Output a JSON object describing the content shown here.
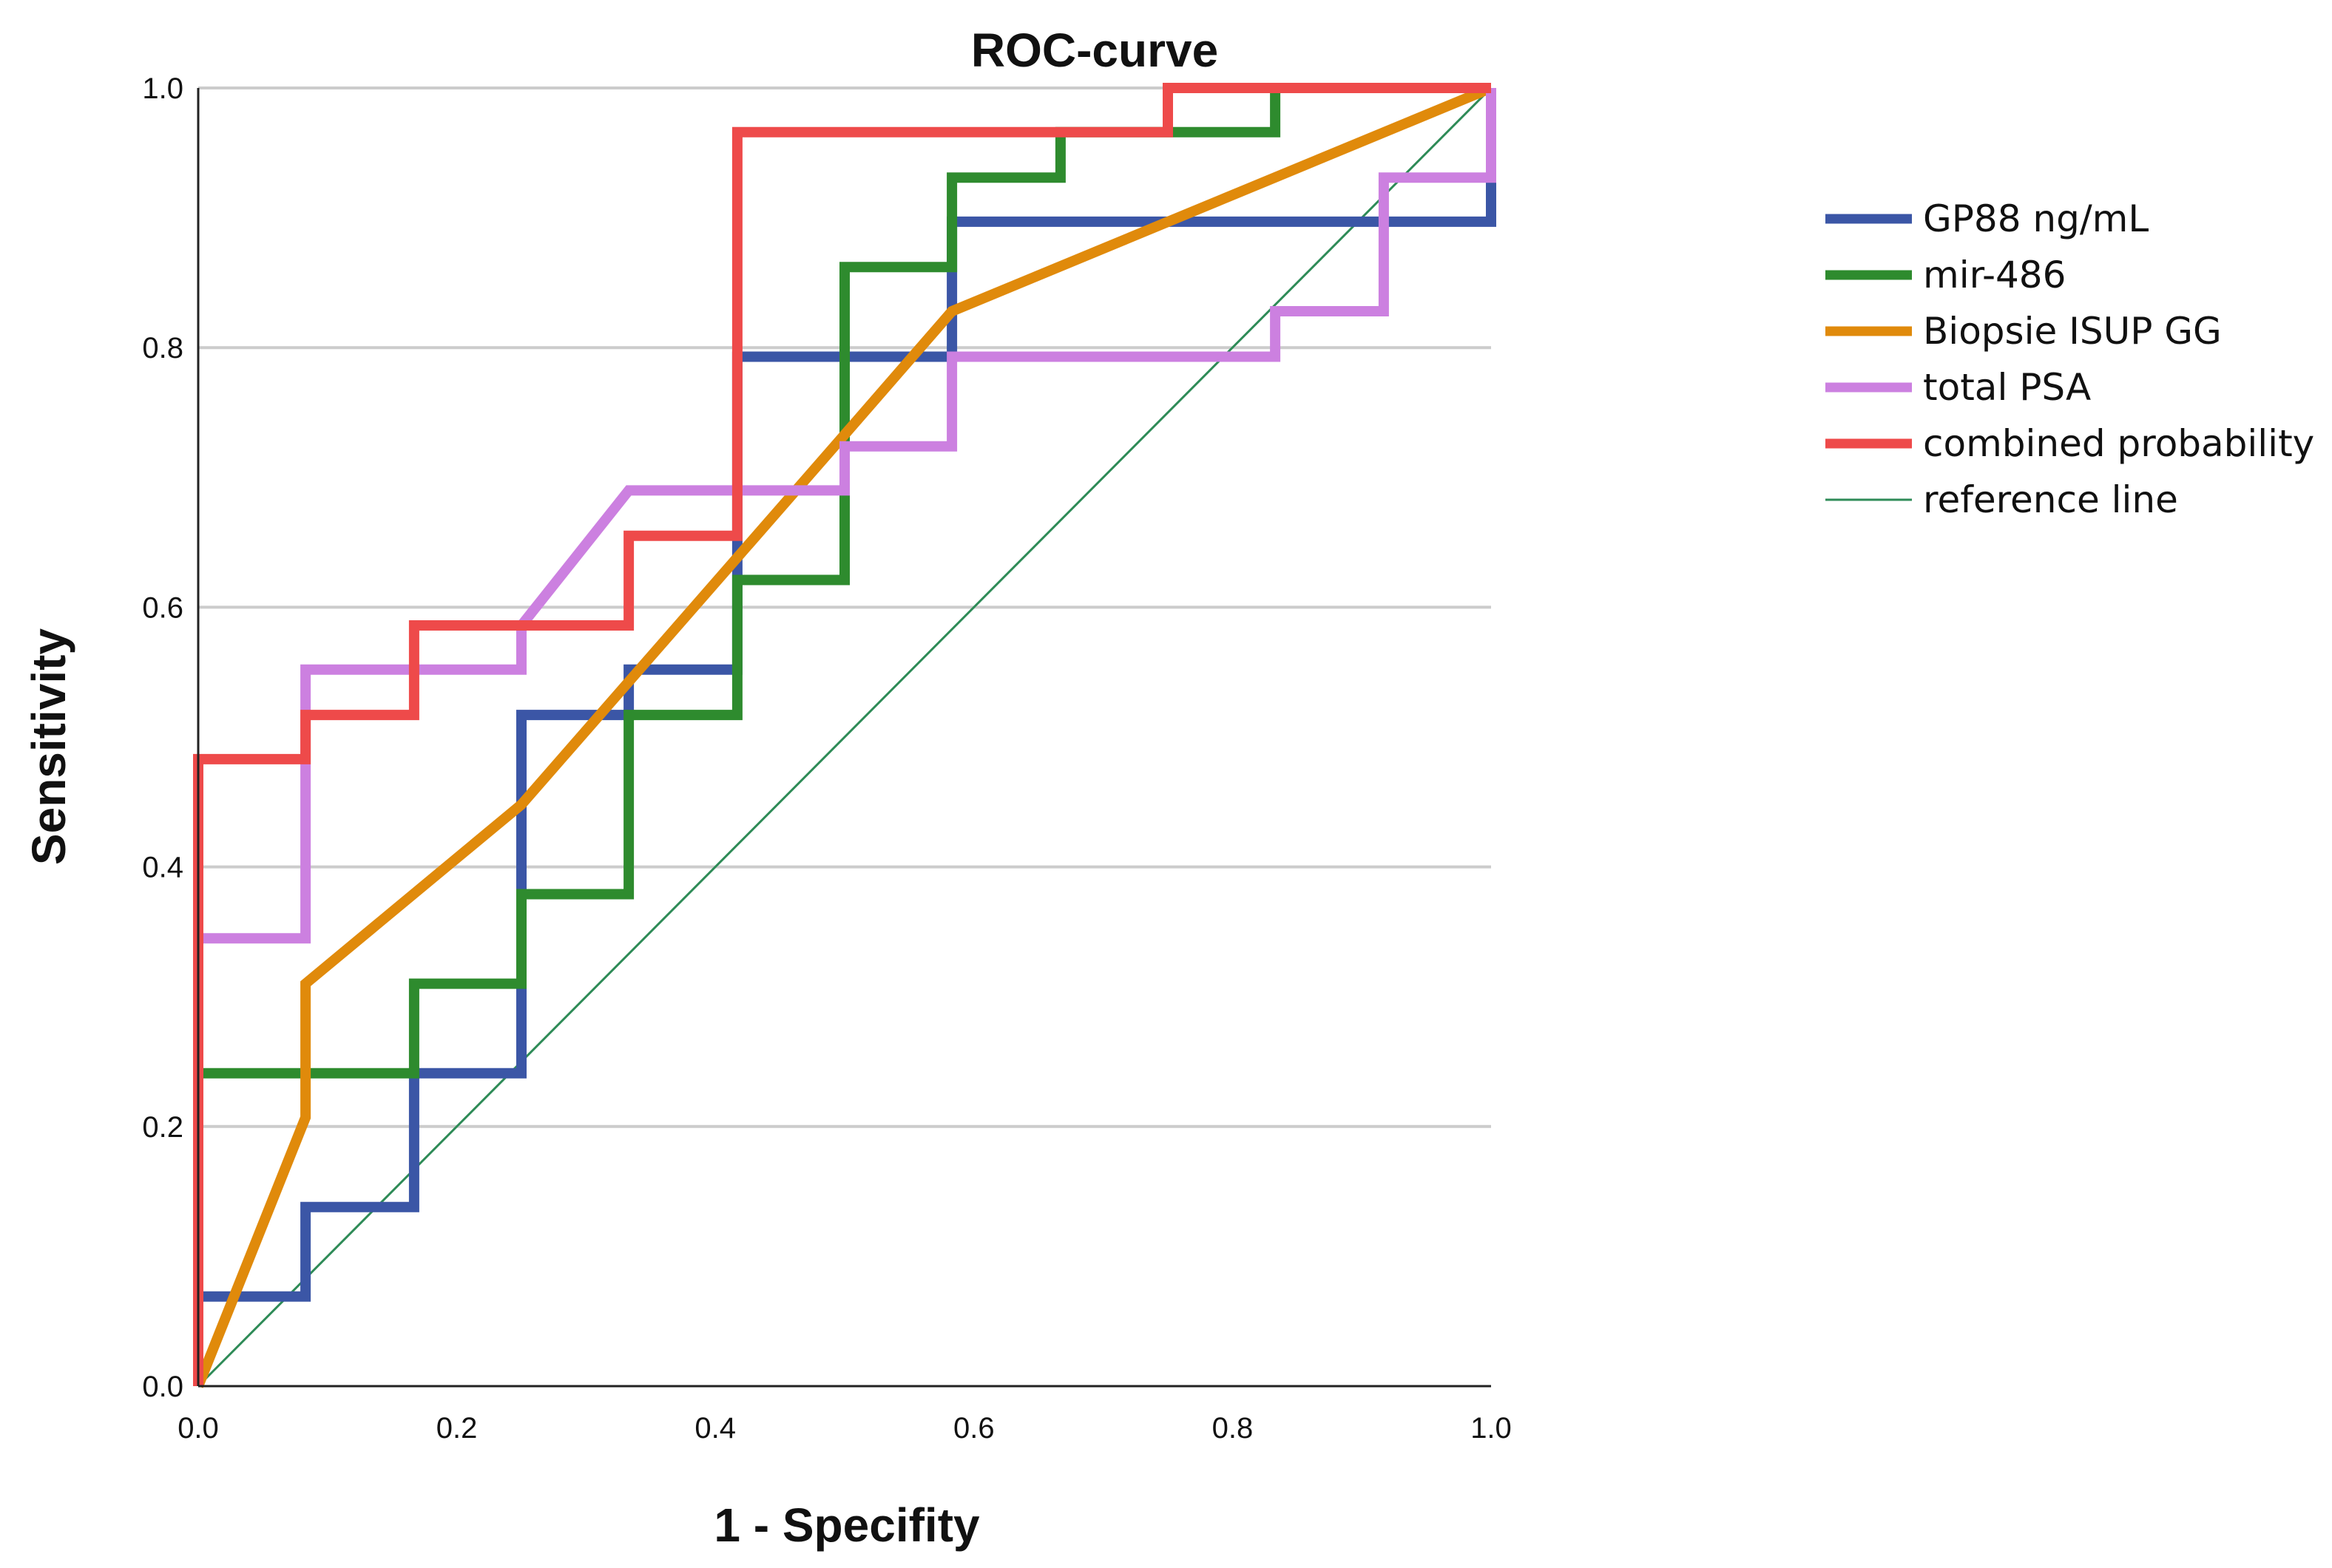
{
  "chart_data": {
    "type": "line",
    "title": "ROC-curve",
    "xlabel": "1 - Specifity",
    "ylabel": "Sensitivity",
    "xlim": [
      0,
      1
    ],
    "ylim": [
      0,
      1
    ],
    "xticks": [
      "0.0",
      "0.2",
      "0.4",
      "0.6",
      "0.8",
      "1.0"
    ],
    "yticks": [
      "0.0",
      "0.2",
      "0.4",
      "0.6",
      "0.8",
      "1.0"
    ],
    "grid": "horizontal",
    "legend_position": "right",
    "series": [
      {
        "name": "GP88 ng/mL",
        "color": "#3b56a6",
        "style": "step",
        "points": [
          [
            0,
            0
          ],
          [
            0,
            0.069
          ],
          [
            0.083,
            0.069
          ],
          [
            0.083,
            0.138
          ],
          [
            0.167,
            0.138
          ],
          [
            0.167,
            0.241
          ],
          [
            0.25,
            0.241
          ],
          [
            0.25,
            0.517
          ],
          [
            0.333,
            0.517
          ],
          [
            0.333,
            0.552
          ],
          [
            0.417,
            0.552
          ],
          [
            0.417,
            0.793
          ],
          [
            0.583,
            0.793
          ],
          [
            0.583,
            0.897
          ],
          [
            1,
            0.897
          ],
          [
            1,
            1
          ]
        ]
      },
      {
        "name": "mir-486",
        "color": "#2e8b2e",
        "style": "step",
        "points": [
          [
            0,
            0
          ],
          [
            0,
            0.241
          ],
          [
            0.167,
            0.241
          ],
          [
            0.167,
            0.31
          ],
          [
            0.25,
            0.31
          ],
          [
            0.25,
            0.379
          ],
          [
            0.333,
            0.379
          ],
          [
            0.333,
            0.517
          ],
          [
            0.417,
            0.517
          ],
          [
            0.417,
            0.621
          ],
          [
            0.5,
            0.621
          ],
          [
            0.5,
            0.862
          ],
          [
            0.583,
            0.862
          ],
          [
            0.583,
            0.931
          ],
          [
            0.667,
            0.931
          ],
          [
            0.667,
            0.966
          ],
          [
            0.833,
            0.966
          ],
          [
            0.833,
            1
          ],
          [
            1,
            1
          ]
        ]
      },
      {
        "name": "Biopsie ISUP GG",
        "color": "#e08a0b",
        "style": "linear",
        "points": [
          [
            0,
            0
          ],
          [
            0.083,
            0.207
          ],
          [
            0.083,
            0.31
          ],
          [
            0.25,
            0.448
          ],
          [
            0.5,
            0.733
          ],
          [
            0.583,
            0.828
          ],
          [
            1,
            1
          ]
        ]
      },
      {
        "name": "total PSA",
        "color": "#cc80e0",
        "style": "step",
        "points": [
          [
            0,
            0
          ],
          [
            0,
            0.345
          ],
          [
            0.083,
            0.345
          ],
          [
            0.083,
            0.552
          ],
          [
            0.25,
            0.552
          ],
          [
            0.25,
            0.586
          ],
          [
            0.333,
            0.69
          ],
          [
            0.5,
            0.69
          ],
          [
            0.5,
            0.724
          ],
          [
            0.583,
            0.724
          ],
          [
            0.583,
            0.793
          ],
          [
            0.833,
            0.793
          ],
          [
            0.833,
            0.828
          ],
          [
            0.917,
            0.828
          ],
          [
            0.917,
            0.931
          ],
          [
            1,
            0.931
          ],
          [
            1,
            1
          ]
        ]
      },
      {
        "name": "combined probability",
        "color": "#ee4a4a",
        "style": "step",
        "points": [
          [
            0,
            0
          ],
          [
            0,
            0.483
          ],
          [
            0.083,
            0.483
          ],
          [
            0.083,
            0.517
          ],
          [
            0.167,
            0.517
          ],
          [
            0.167,
            0.586
          ],
          [
            0.333,
            0.586
          ],
          [
            0.333,
            0.655
          ],
          [
            0.417,
            0.655
          ],
          [
            0.417,
            0.966
          ],
          [
            0.75,
            0.966
          ],
          [
            0.75,
            1
          ],
          [
            1,
            1
          ]
        ]
      },
      {
        "name": "reference line",
        "color": "#2e8b57",
        "style": "reference",
        "points": [
          [
            0,
            0
          ],
          [
            1,
            1
          ]
        ]
      }
    ]
  }
}
